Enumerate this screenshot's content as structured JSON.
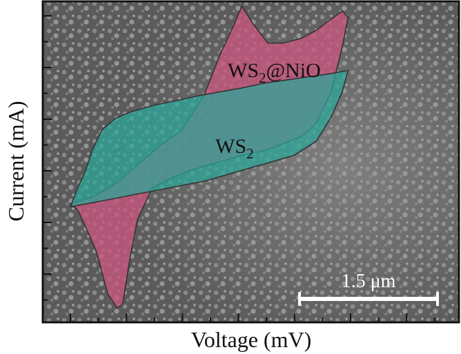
{
  "chart_data": {
    "type": "line",
    "title": "",
    "xlabel": "Voltage (mV)",
    "ylabel": "Current (mA)",
    "x_tick_labels": [],
    "y_tick_labels": [],
    "grid": false,
    "background": "SEM micrograph",
    "scale_bar": {
      "label": "1.5 μm"
    },
    "series": [
      {
        "name": "WS2@NiO",
        "label_main": "WS",
        "label_sub": "2",
        "label_rest": "@NiO",
        "color": "#c8557e",
        "points": [
          [
            0.0,
            0.37
          ],
          [
            0.06,
            0.39
          ],
          [
            0.12,
            0.43
          ],
          [
            0.18,
            0.49
          ],
          [
            0.24,
            0.55
          ],
          [
            0.3,
            0.6
          ],
          [
            0.36,
            0.71
          ],
          [
            0.4,
            0.83
          ],
          [
            0.44,
            0.93
          ],
          [
            0.46,
            0.985
          ],
          [
            0.49,
            0.93
          ],
          [
            0.53,
            0.87
          ],
          [
            0.57,
            0.87
          ],
          [
            0.62,
            0.885
          ],
          [
            0.66,
            0.91
          ],
          [
            0.7,
            0.945
          ],
          [
            0.73,
            0.97
          ],
          [
            0.745,
            0.95
          ],
          [
            0.73,
            0.86
          ],
          [
            0.7,
            0.72
          ],
          [
            0.66,
            0.62
          ],
          [
            0.62,
            0.58
          ],
          [
            0.58,
            0.56
          ],
          [
            0.52,
            0.535
          ],
          [
            0.46,
            0.52
          ],
          [
            0.4,
            0.5
          ],
          [
            0.34,
            0.48
          ],
          [
            0.28,
            0.455
          ],
          [
            0.22,
            0.42
          ],
          [
            0.18,
            0.32
          ],
          [
            0.16,
            0.2
          ],
          [
            0.14,
            0.055
          ],
          [
            0.125,
            0.045
          ],
          [
            0.1,
            0.09
          ],
          [
            0.07,
            0.22
          ],
          [
            0.04,
            0.3
          ],
          [
            0.02,
            0.35
          ]
        ]
      },
      {
        "name": "WS2",
        "label_main": "WS",
        "label_sub": "2",
        "label_rest": "",
        "color": "#2aa89a",
        "points": [
          [
            0.0,
            0.36
          ],
          [
            0.06,
            0.373
          ],
          [
            0.12,
            0.386
          ],
          [
            0.18,
            0.4
          ],
          [
            0.24,
            0.413
          ],
          [
            0.3,
            0.427
          ],
          [
            0.36,
            0.44
          ],
          [
            0.42,
            0.46
          ],
          [
            0.48,
            0.48
          ],
          [
            0.54,
            0.5
          ],
          [
            0.6,
            0.52
          ],
          [
            0.66,
            0.565
          ],
          [
            0.7,
            0.64
          ],
          [
            0.73,
            0.72
          ],
          [
            0.745,
            0.785
          ],
          [
            0.7,
            0.775
          ],
          [
            0.64,
            0.765
          ],
          [
            0.58,
            0.755
          ],
          [
            0.52,
            0.745
          ],
          [
            0.46,
            0.73
          ],
          [
            0.4,
            0.718
          ],
          [
            0.34,
            0.705
          ],
          [
            0.28,
            0.69
          ],
          [
            0.22,
            0.675
          ],
          [
            0.16,
            0.655
          ],
          [
            0.12,
            0.635
          ],
          [
            0.085,
            0.6
          ],
          [
            0.06,
            0.54
          ],
          [
            0.04,
            0.47
          ],
          [
            0.02,
            0.42
          ]
        ]
      }
    ]
  }
}
